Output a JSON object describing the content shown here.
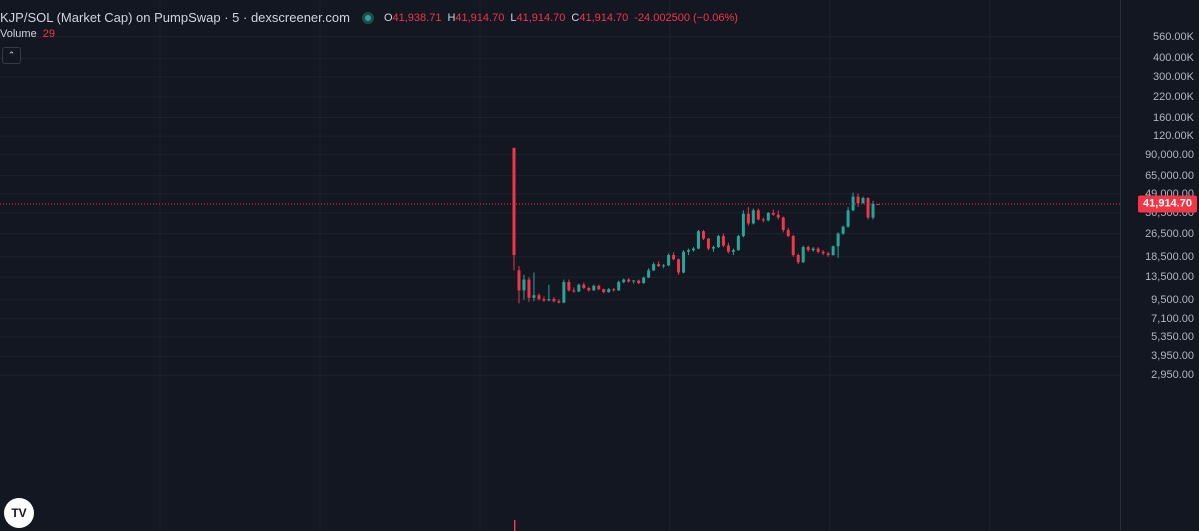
{
  "legend": {
    "title": "KJP/SOL (Market Cap) on PumpSwap · 5 · dexscreener.com",
    "open_label": "O",
    "open": "41,938.71",
    "high_label": "H",
    "high": "41,914.70",
    "low_label": "L",
    "low": "41,914.70",
    "close_label": "C",
    "close": "41,914.70",
    "change": "-24.002500 (−0.06%)"
  },
  "volume": {
    "label": "Volume",
    "value": "29"
  },
  "controls": {
    "collapse_glyph": "⌃",
    "logo_text": "TV"
  },
  "icons": {
    "status": "status-dot-icon",
    "collapse": "chevron-up-icon",
    "logo": "tradingview-logo-icon"
  },
  "colors": {
    "up": "#26a69a",
    "down": "#f23645",
    "background": "#131722",
    "grid": "#1e222d",
    "text": "#d1d4dc"
  },
  "last_price": {
    "label": "41,914.70",
    "value": 41914.7
  },
  "chart_data": {
    "type": "candlestick",
    "title": "KJP/SOL (Market Cap) on PumpSwap · 5 · dexscreener.com",
    "y_scale": "log",
    "ylim": [
      2700,
      600000
    ],
    "y_ticks": [
      {
        "value": 560000,
        "label": "560.00K"
      },
      {
        "value": 400000,
        "label": "400.00K"
      },
      {
        "value": 300000,
        "label": "300.00K"
      },
      {
        "value": 220000,
        "label": "220.00K"
      },
      {
        "value": 160000,
        "label": "160.00K"
      },
      {
        "value": 120000,
        "label": "120.00K"
      },
      {
        "value": 90000,
        "label": "90,000.00"
      },
      {
        "value": 65000,
        "label": "65,000.00"
      },
      {
        "value": 49000,
        "label": "49,000.00"
      },
      {
        "value": 36500,
        "label": "36,500.00"
      },
      {
        "value": 26500,
        "label": "26,500.00"
      },
      {
        "value": 18500,
        "label": "18,500.00"
      },
      {
        "value": 13500,
        "label": "13,500.00"
      },
      {
        "value": 9500,
        "label": "9,500.00"
      },
      {
        "value": 7100,
        "label": "7,100.00"
      },
      {
        "value": 5350,
        "label": "5,350.00"
      },
      {
        "value": 3950,
        "label": "3,950.00"
      },
      {
        "value": 2950,
        "label": "2,950.00"
      }
    ],
    "grid": true,
    "candles_ohlc": [
      [
        100000,
        100000,
        15000,
        19000
      ],
      [
        15000,
        16000,
        9000,
        11000
      ],
      [
        11000,
        14000,
        9500,
        13000
      ],
      [
        13000,
        13500,
        9200,
        9800
      ],
      [
        9800,
        14500,
        9300,
        10200
      ],
      [
        10200,
        10500,
        9400,
        9600
      ],
      [
        9600,
        10000,
        9200,
        9400
      ],
      [
        9400,
        12000,
        9300,
        9600
      ],
      [
        9600,
        9900,
        9100,
        9300
      ],
      [
        9300,
        9600,
        9000,
        9100
      ],
      [
        9100,
        13000,
        9000,
        12500
      ],
      [
        12500,
        13000,
        10800,
        11000
      ],
      [
        11000,
        11500,
        10600,
        10800
      ],
      [
        10800,
        12200,
        10700,
        12000
      ],
      [
        12000,
        12400,
        11200,
        11400
      ],
      [
        11400,
        11600,
        10800,
        11000
      ],
      [
        11000,
        12000,
        10900,
        11800
      ],
      [
        11800,
        12000,
        11000,
        11200
      ],
      [
        11200,
        11300,
        10500,
        10700
      ],
      [
        10700,
        11400,
        10600,
        11200
      ],
      [
        11200,
        11400,
        10800,
        11000
      ],
      [
        11000,
        12800,
        10900,
        12500
      ],
      [
        12500,
        13200,
        12300,
        13000
      ],
      [
        13000,
        13300,
        12400,
        12600
      ],
      [
        12600,
        12900,
        12200,
        12800
      ],
      [
        12800,
        13000,
        12100,
        12300
      ],
      [
        12300,
        13600,
        12200,
        13400
      ],
      [
        13400,
        15500,
        13300,
        15000
      ],
      [
        15000,
        17000,
        14800,
        16500
      ],
      [
        16500,
        17200,
        15800,
        16000
      ],
      [
        16000,
        16500,
        15500,
        16200
      ],
      [
        16200,
        19500,
        16000,
        19000
      ],
      [
        19000,
        19800,
        17500,
        17800
      ],
      [
        17800,
        18000,
        14000,
        14500
      ],
      [
        14500,
        20500,
        14300,
        20000
      ],
      [
        20000,
        21000,
        19000,
        20500
      ],
      [
        20500,
        21500,
        20000,
        21000
      ],
      [
        21000,
        28000,
        20800,
        27500
      ],
      [
        27500,
        28000,
        24000,
        24500
      ],
      [
        24500,
        24800,
        20500,
        21000
      ],
      [
        21000,
        22000,
        20000,
        21500
      ],
      [
        21500,
        26000,
        21200,
        25500
      ],
      [
        25500,
        26500,
        21500,
        22000
      ],
      [
        22000,
        23000,
        19500,
        20000
      ],
      [
        20000,
        21000,
        19000,
        20500
      ],
      [
        20500,
        26000,
        20300,
        25500
      ],
      [
        25500,
        38000,
        25000,
        36000
      ],
      [
        36000,
        40000,
        30000,
        31000
      ],
      [
        31000,
        39000,
        30500,
        38000
      ],
      [
        38000,
        39000,
        32500,
        33000
      ],
      [
        33000,
        34000,
        31500,
        32500
      ],
      [
        32500,
        37000,
        32000,
        36500
      ],
      [
        36500,
        38500,
        35000,
        35500
      ],
      [
        35500,
        38000,
        33000,
        34000
      ],
      [
        34000,
        34500,
        27000,
        28000
      ],
      [
        28000,
        29000,
        25000,
        25500
      ],
      [
        25500,
        26000,
        18500,
        19000
      ],
      [
        19000,
        19500,
        16500,
        17000
      ],
      [
        17000,
        22000,
        16800,
        21500
      ],
      [
        21500,
        22000,
        20000,
        20500
      ],
      [
        20500,
        21500,
        20000,
        21000
      ],
      [
        21000,
        21500,
        19500,
        20000
      ],
      [
        20000,
        20500,
        19000,
        19500
      ],
      [
        19500,
        20000,
        18500,
        19000
      ],
      [
        19000,
        22000,
        18800,
        21800
      ],
      [
        21800,
        27000,
        18200,
        26500
      ],
      [
        26500,
        30000,
        26000,
        29500
      ],
      [
        29500,
        40000,
        29000,
        38000
      ],
      [
        38000,
        50000,
        37500,
        47000
      ],
      [
        47000,
        49500,
        40000,
        42500
      ],
      [
        42500,
        47000,
        42000,
        46000
      ],
      [
        46000,
        46500,
        33000,
        34000
      ],
      [
        34000,
        44000,
        33000,
        41938.71
      ],
      [
        41938.71,
        41914.7,
        41914.7,
        41914.7
      ]
    ]
  }
}
